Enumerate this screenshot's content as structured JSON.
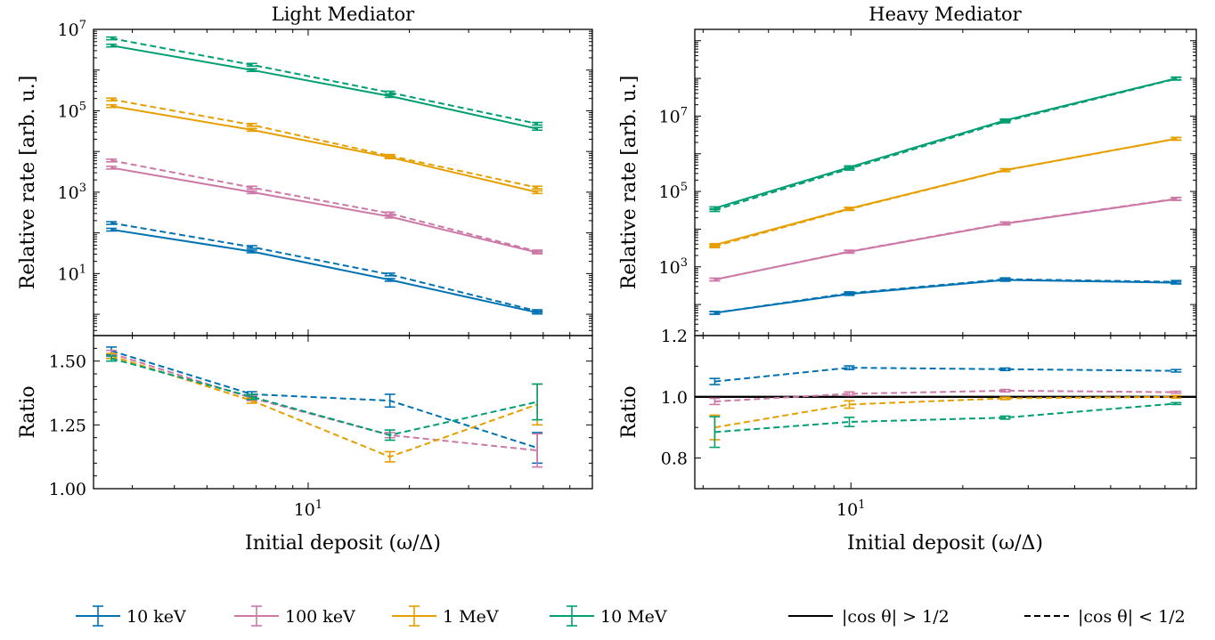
{
  "colors": {
    "10 keV": "#0072B2",
    "100 keV": "#CC79A7",
    "1 MeV": "#E69F00",
    "10 MeV": "#009E73"
  },
  "line_styles": {
    "cos_gt": "solid",
    "cos_lt": "dashed"
  },
  "legend": {
    "energies": [
      "10 keV",
      "100 keV",
      "1 MeV",
      "10 MeV"
    ],
    "styles": [
      {
        "label": "|cos θ| > 1/2",
        "style": "solid"
      },
      {
        "label": "|cos θ| < 1/2",
        "style": "dashed"
      }
    ]
  },
  "chart_data": [
    {
      "type": "line",
      "title": "Light Mediator",
      "xlabel": "Initial deposit (ω/Δ)",
      "ylabel": "Relative rate [arb. u.]",
      "xscale": "log",
      "yscale": "log",
      "xlim": [
        2.3,
        70
      ],
      "ylim": [
        0.3,
        10000000
      ],
      "yticks": [
        "10^1",
        "10^3",
        "10^5",
        "10^7"
      ],
      "xticks": [
        "10^1"
      ],
      "x": [
        2.6,
        6.8,
        17.5,
        48
      ],
      "series": [
        {
          "name": "10 keV",
          "style": "solid",
          "values": [
            120,
            35,
            7,
            1.1
          ]
        },
        {
          "name": "10 keV",
          "style": "dashed",
          "values": [
            175,
            45,
            9.5,
            1.2
          ]
        },
        {
          "name": "100 keV",
          "style": "solid",
          "values": [
            4000,
            1000,
            250,
            33
          ]
        },
        {
          "name": "100 keV",
          "style": "dashed",
          "values": [
            6000,
            1300,
            300,
            35
          ]
        },
        {
          "name": "1 MeV",
          "style": "solid",
          "values": [
            130000,
            34000,
            7200,
            1000
          ]
        },
        {
          "name": "1 MeV",
          "style": "dashed",
          "values": [
            190000,
            45000,
            7800,
            1300
          ]
        },
        {
          "name": "10 MeV",
          "style": "solid",
          "values": [
            4000000,
            1000000,
            230000,
            36000
          ]
        },
        {
          "name": "10 MeV",
          "style": "dashed",
          "values": [
            6000000,
            1350000,
            280000,
            48000
          ]
        }
      ]
    },
    {
      "type": "line",
      "title": "",
      "xlabel": "",
      "ylabel": "Ratio",
      "xscale": "log",
      "xlim": [
        2.3,
        70
      ],
      "ylim": [
        1.0,
        1.6
      ],
      "yticks": [
        "1.00",
        "1.25",
        "1.50"
      ],
      "x": [
        2.6,
        6.8,
        17.5,
        48
      ],
      "series": [
        {
          "name": "10 keV",
          "style": "dashed",
          "values": [
            1.54,
            1.37,
            1.345,
            1.16
          ],
          "errors": [
            0.015,
            0.01,
            0.025,
            0.06
          ]
        },
        {
          "name": "100 keV",
          "style": "dashed",
          "values": [
            1.53,
            1.355,
            1.21,
            1.15
          ],
          "errors": [
            0.012,
            0.01,
            0.01,
            0.065
          ]
        },
        {
          "name": "1 MeV",
          "style": "dashed",
          "values": [
            1.52,
            1.345,
            1.125,
            1.33
          ],
          "errors": [
            0.01,
            0.01,
            0.02,
            0.08
          ]
        },
        {
          "name": "10 MeV",
          "style": "dashed",
          "values": [
            1.51,
            1.36,
            1.21,
            1.34
          ],
          "errors": [
            0.01,
            0.01,
            0.02,
            0.07
          ]
        }
      ]
    },
    {
      "type": "line",
      "title": "Heavy Mediator",
      "xlabel": "Initial deposit (ω/Δ)",
      "ylabel": "Relative rate [arb. u.]",
      "xscale": "log",
      "yscale": "log",
      "xlim": [
        3.8,
        85
      ],
      "ylim": [
        15,
        2000000000
      ],
      "yticks": [
        "10^3",
        "10^5",
        "10^7"
      ],
      "xticks": [
        "10^1"
      ],
      "x": [
        4.3,
        9.9,
        26,
        75
      ],
      "series": [
        {
          "name": "10 keV",
          "style": "solid",
          "values": [
            60,
            190,
            450,
            380
          ]
        },
        {
          "name": "10 keV",
          "style": "dashed",
          "values": [
            60,
            200,
            470,
            400
          ]
        },
        {
          "name": "100 keV",
          "style": "solid",
          "values": [
            460,
            2500,
            14000,
            63000
          ]
        },
        {
          "name": "100 keV",
          "style": "dashed",
          "values": [
            460,
            2550,
            14300,
            64000
          ]
        },
        {
          "name": "1 MeV",
          "style": "solid",
          "values": [
            3800,
            35000,
            370000,
            2500000
          ]
        },
        {
          "name": "1 MeV",
          "style": "dashed",
          "values": [
            3500,
            34000,
            365000,
            2500000
          ]
        },
        {
          "name": "10 MeV",
          "style": "solid",
          "values": [
            36000,
            440000,
            7700000,
            100000000
          ]
        },
        {
          "name": "10 MeV",
          "style": "dashed",
          "values": [
            32000,
            400000,
            7200000,
            98000000
          ]
        }
      ]
    },
    {
      "type": "line",
      "title": "",
      "xlabel": "",
      "ylabel": "Ratio",
      "xscale": "log",
      "xlim": [
        3.8,
        85
      ],
      "ylim": [
        0.7,
        1.2
      ],
      "yticks": [
        "0.8",
        "1.0",
        "1.2"
      ],
      "reference_line": 1.0,
      "x": [
        4.3,
        9.9,
        26,
        75
      ],
      "series": [
        {
          "name": "10 keV",
          "style": "dashed",
          "values": [
            1.05,
            1.095,
            1.09,
            1.085
          ],
          "errors": [
            0.01,
            0.006,
            0.004,
            0.004
          ]
        },
        {
          "name": "100 keV",
          "style": "dashed",
          "values": [
            0.985,
            1.01,
            1.02,
            1.015
          ],
          "errors": [
            0.01,
            0.006,
            0.004,
            0.003
          ]
        },
        {
          "name": "1 MeV",
          "style": "dashed",
          "values": [
            0.9,
            0.975,
            0.995,
            1.0
          ],
          "errors": [
            0.04,
            0.012,
            0.004,
            0.004
          ]
        },
        {
          "name": "10 MeV",
          "style": "dashed",
          "values": [
            0.885,
            0.918,
            0.932,
            0.978
          ],
          "errors": [
            0.05,
            0.015,
            0.005,
            0.003
          ]
        }
      ]
    }
  ]
}
